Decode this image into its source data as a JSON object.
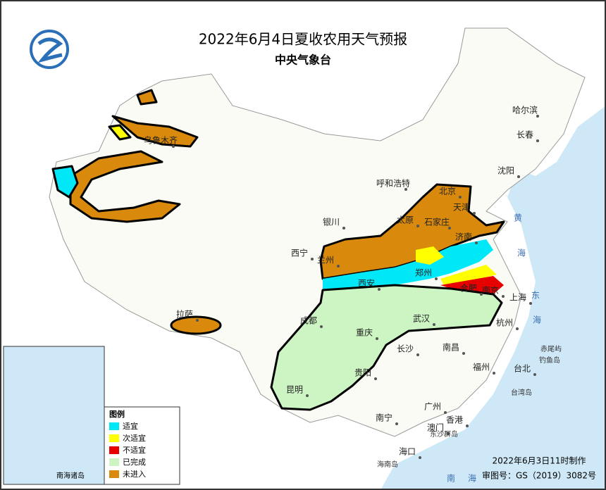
{
  "header": {
    "title": "2022年6月4日夏收农用天气预报",
    "subtitle": "中央气象台"
  },
  "legend": {
    "title": "图例",
    "items": [
      {
        "label": "适宜",
        "color": "#00e8f8"
      },
      {
        "label": "次适宜",
        "color": "#ffff00"
      },
      {
        "label": "不适宜",
        "color": "#e60000"
      },
      {
        "label": "已完成",
        "color": "#cdf5c4"
      },
      {
        "label": "未进入",
        "color": "#d98a0c"
      }
    ]
  },
  "cities": [
    "哈尔滨",
    "长春",
    "沈阳",
    "北京",
    "天津",
    "呼和浩特",
    "石家庄",
    "太原",
    "济南",
    "银川",
    "西宁",
    "兰州",
    "郑州",
    "西安",
    "合肥",
    "南京",
    "上海",
    "杭州",
    "武汉",
    "成都",
    "重庆",
    "长沙",
    "南昌",
    "福州",
    "台北",
    "贵阳",
    "昆明",
    "南宁",
    "广州",
    "香港",
    "澳门",
    "海口",
    "拉萨",
    "乌鲁木齐"
  ],
  "places": [
    "赤尾屿",
    "钓鱼岛",
    "台湾岛",
    "东沙群岛",
    "海南岛",
    "黄",
    "海",
    "东",
    "海",
    "南",
    "海"
  ],
  "inset": {
    "title": "南海诸岛"
  },
  "footer": {
    "made": "2022年6月3日11时制作",
    "approval": "审图号：GS（2019）3082号"
  }
}
